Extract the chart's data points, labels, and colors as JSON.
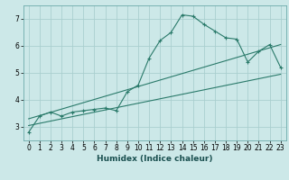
{
  "xlabel": "Humidex (Indice chaleur)",
  "ylabel": "",
  "bg_color": "#cce8e8",
  "grid_color": "#aacfcf",
  "line_color": "#2a7a6a",
  "spine_color": "#6aabab",
  "xlabel_color": "#1a5050",
  "xlim": [
    -0.5,
    23.5
  ],
  "ylim": [
    2.5,
    7.5
  ],
  "yticks": [
    3,
    4,
    5,
    6,
    7
  ],
  "xticks": [
    0,
    1,
    2,
    3,
    4,
    5,
    6,
    7,
    8,
    9,
    10,
    11,
    12,
    13,
    14,
    15,
    16,
    17,
    18,
    19,
    20,
    21,
    22,
    23
  ],
  "main_x": [
    0,
    1,
    2,
    3,
    4,
    5,
    6,
    7,
    8,
    9,
    10,
    11,
    12,
    13,
    14,
    15,
    16,
    17,
    18,
    19,
    20,
    21,
    22,
    23
  ],
  "main_y": [
    2.8,
    3.4,
    3.55,
    3.4,
    3.55,
    3.6,
    3.65,
    3.7,
    3.6,
    4.3,
    4.55,
    5.55,
    6.2,
    6.5,
    7.15,
    7.1,
    6.8,
    6.55,
    6.3,
    6.25,
    5.4,
    5.8,
    6.05,
    5.2
  ],
  "line2_x": [
    0,
    23
  ],
  "line2_y": [
    3.05,
    4.95
  ],
  "line3_x": [
    0,
    23
  ],
  "line3_y": [
    3.3,
    6.05
  ],
  "tick_fontsize": 5.5,
  "xlabel_fontsize": 6.5,
  "linewidth": 0.8,
  "markersize": 3.5,
  "markeredgewidth": 0.8
}
